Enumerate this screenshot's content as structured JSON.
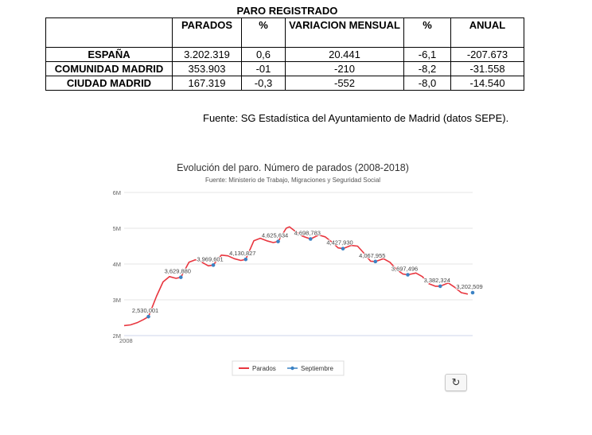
{
  "table": {
    "title": "PARO REGISTRADO",
    "headers": [
      "",
      "PARADOS",
      "%",
      "VARIACION MENSUAL",
      "%",
      "ANUAL"
    ],
    "rows": [
      [
        "ESPAÑA",
        "3.202.319",
        "0,6",
        "20.441",
        "-6,1",
        "-207.673"
      ],
      [
        "COMUNIDAD MADRID",
        "353.903",
        "-01",
        "-210",
        "-8,2",
        "-31.558"
      ],
      [
        "CIUDAD MADRID",
        "167.319",
        "-0,3",
        "-552",
        "-8,0",
        "-14.540"
      ]
    ]
  },
  "source_note": "Fuente: SG Estadística del Ayuntamiento de Madrid (datos SEPE).",
  "chart_data": {
    "type": "line",
    "title": "Evolución del paro. Número de parados (2008-2018)",
    "subtitle": "Fuente: Ministerio de Trabajo, Migraciones y Seguridad Social",
    "xlabel": "",
    "ylabel": "",
    "x_tick_labels": [
      "2008"
    ],
    "y_tick_labels": [
      "2M",
      "3M",
      "4M",
      "5M",
      "6M"
    ],
    "ylim": [
      2000000,
      6000000
    ],
    "xlim": [
      2008.0,
      2018.75
    ],
    "grid": true,
    "legend_position": "bottom",
    "series": [
      {
        "name": "Parados",
        "color": "#e8363f",
        "x": [
          2008.0,
          2008.2,
          2008.4,
          2008.6,
          2008.75,
          2009.0,
          2009.2,
          2009.4,
          2009.6,
          2009.75,
          2010.0,
          2010.2,
          2010.4,
          2010.6,
          2010.75,
          2011.0,
          2011.2,
          2011.4,
          2011.6,
          2011.75,
          2012.0,
          2012.2,
          2012.4,
          2012.6,
          2012.75,
          2013.0,
          2013.1,
          2013.3,
          2013.5,
          2013.75,
          2014.0,
          2014.2,
          2014.4,
          2014.6,
          2014.75,
          2015.0,
          2015.2,
          2015.4,
          2015.6,
          2015.75,
          2016.0,
          2016.2,
          2016.4,
          2016.6,
          2016.75,
          2017.0,
          2017.2,
          2017.4,
          2017.6,
          2017.75,
          2018.0,
          2018.2,
          2018.4,
          2018.6
        ],
        "values": [
          2280000,
          2300000,
          2360000,
          2450000,
          2530000,
          3100000,
          3500000,
          3650000,
          3600000,
          3630000,
          4050000,
          4120000,
          4050000,
          3950000,
          3970000,
          4250000,
          4230000,
          4150000,
          4100000,
          4130000,
          4650000,
          4720000,
          4650000,
          4600000,
          4630000,
          5000000,
          5040000,
          4900000,
          4780000,
          4700000,
          4810000,
          4760000,
          4620000,
          4450000,
          4430000,
          4520000,
          4500000,
          4300000,
          4080000,
          4070000,
          4150000,
          4050000,
          3850000,
          3720000,
          3700000,
          3750000,
          3650000,
          3450000,
          3380000,
          3380000,
          3470000,
          3350000,
          3200000,
          3160000
        ]
      },
      {
        "name": "Septiembre",
        "color": "#3b82c4",
        "x": [
          2008.75,
          2009.75,
          2010.75,
          2011.75,
          2012.75,
          2013.75,
          2014.75,
          2015.75,
          2016.75,
          2017.75,
          2018.75
        ],
        "values": [
          2530000,
          3630000,
          3970000,
          4130000,
          4630000,
          4700000,
          4430000,
          4070000,
          3700000,
          3380000,
          3200000
        ],
        "point_labels": [
          "2,530,001",
          "3,629,880",
          "3,969,601",
          "4,130,827",
          "4,625,634",
          "4,698,783",
          "4,427,930",
          "4,067,955",
          "3,697,496",
          "3,382,324",
          "3,202,509"
        ]
      }
    ]
  }
}
